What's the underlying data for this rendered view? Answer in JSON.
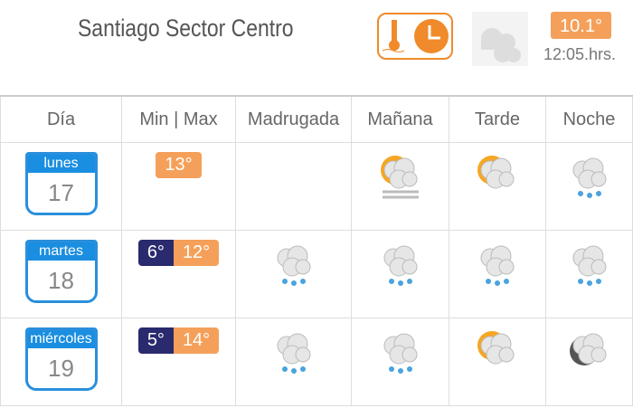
{
  "header": {
    "title": "Santiago Sector Centro",
    "current_temp": "10.1°",
    "time": "12:05.hrs.",
    "current_icon": "cloudy-icon",
    "temp-clock-icon": "thermometer-clock-icon"
  },
  "columns": [
    "Día",
    "Min | Max",
    "Madrugada",
    "Mañana",
    "Tarde",
    "Noche"
  ],
  "days": [
    {
      "day": "lunes",
      "date": "17",
      "min": "",
      "max": "13°",
      "madrugada": "",
      "manana": "partly-cloudy-fog",
      "tarde": "partly-cloudy",
      "noche": "light-rain"
    },
    {
      "day": "martes",
      "date": "18",
      "min": "6°",
      "max": "12°",
      "madrugada": "rain",
      "manana": "rain",
      "tarde": "rain",
      "noche": "rain"
    },
    {
      "day": "miércoles",
      "date": "19",
      "min": "5°",
      "max": "14°",
      "madrugada": "rain",
      "manana": "rain",
      "tarde": "partly-cloudy",
      "noche": "night-cloudy"
    }
  ],
  "colors": {
    "accent": "#f08a2a",
    "max": "#f5a05a",
    "min": "#2a2a6e",
    "calendar": "#1a8ee0"
  }
}
